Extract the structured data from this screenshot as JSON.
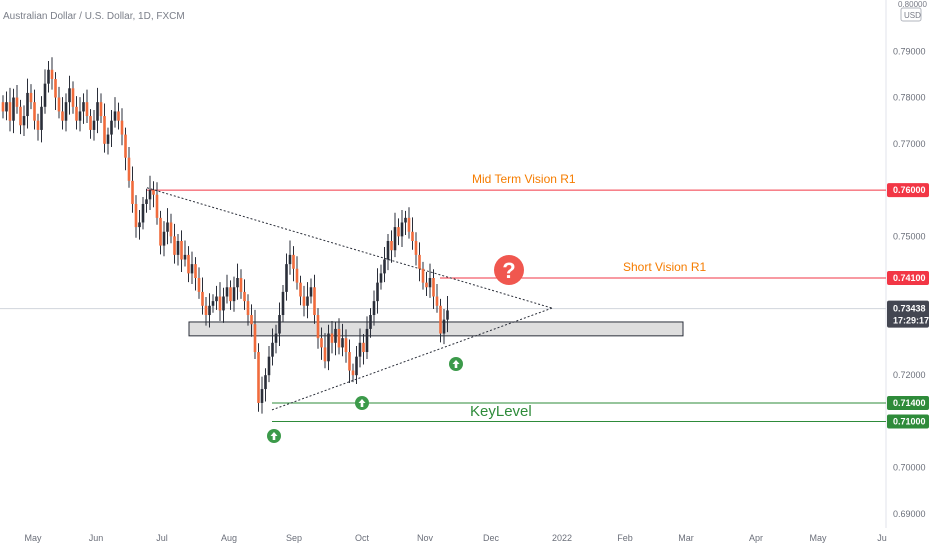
{
  "header": {
    "title": "Australian Dollar / U.S. Dollar, 1D, FXCM",
    "currency": "USD",
    "top_price": "0.80000"
  },
  "chart_data": {
    "type": "candlestick",
    "title": "Australian Dollar / U.S. Dollar, 1D, FXCM",
    "ylim": [
      0.685,
      0.803
    ],
    "y_ticks": [
      {
        "value": 0.79,
        "label": "0.79000"
      },
      {
        "value": 0.78,
        "label": "0.78000"
      },
      {
        "value": 0.77,
        "label": "0.77000"
      },
      {
        "value": 0.75,
        "label": "0.75000"
      },
      {
        "value": 0.72,
        "label": "0.72000"
      },
      {
        "value": 0.7,
        "label": "0.70000"
      },
      {
        "value": 0.69,
        "label": "0.69000"
      }
    ],
    "x_ticks": [
      "May",
      "Jun",
      "Jul",
      "Aug",
      "Sep",
      "Oct",
      "Nov",
      "Dec",
      "2022",
      "Feb",
      "Mar",
      "Apr",
      "May",
      "Ju"
    ],
    "bull_color": "#26a69a",
    "bear_color": "#ef5350",
    "candle_color": "#2a2e39",
    "closes": [
      0.777,
      0.779,
      0.775,
      0.78,
      0.778,
      0.774,
      0.776,
      0.781,
      0.779,
      0.775,
      0.773,
      0.778,
      0.783,
      0.786,
      0.784,
      0.78,
      0.777,
      0.775,
      0.779,
      0.782,
      0.778,
      0.775,
      0.777,
      0.779,
      0.776,
      0.773,
      0.775,
      0.779,
      0.776,
      0.77,
      0.772,
      0.775,
      0.777,
      0.775,
      0.772,
      0.767,
      0.762,
      0.757,
      0.752,
      0.753,
      0.757,
      0.758,
      0.76,
      0.759,
      0.754,
      0.748,
      0.751,
      0.753,
      0.75,
      0.746,
      0.749,
      0.745,
      0.746,
      0.742,
      0.744,
      0.741,
      0.738,
      0.735,
      0.733,
      0.735,
      0.736,
      0.737,
      0.734,
      0.737,
      0.739,
      0.736,
      0.739,
      0.741,
      0.738,
      0.736,
      0.733,
      0.731,
      0.725,
      0.714,
      0.717,
      0.72,
      0.724,
      0.727,
      0.729,
      0.733,
      0.738,
      0.744,
      0.746,
      0.743,
      0.74,
      0.737,
      0.735,
      0.737,
      0.739,
      0.733,
      0.728,
      0.726,
      0.723,
      0.729,
      0.727,
      0.73,
      0.726,
      0.728,
      0.725,
      0.721,
      0.72,
      0.724,
      0.727,
      0.725,
      0.73,
      0.733,
      0.736,
      0.74,
      0.742,
      0.745,
      0.749,
      0.747,
      0.752,
      0.75,
      0.753,
      0.754,
      0.751,
      0.749,
      0.746,
      0.743,
      0.74,
      0.739,
      0.741,
      0.737,
      0.735,
      0.729,
      0.732,
      0.734
    ],
    "annotations": {
      "mid_term_label": "Mid Term Vision R1",
      "short_label": "Short Vision R1",
      "key_label": "KeyLevel",
      "question_mark": "?"
    },
    "levels": [
      {
        "value": 0.76,
        "label": "0.76000",
        "color": "#f23645"
      },
      {
        "value": 0.741,
        "label": "0.74100",
        "color": "#f23645"
      },
      {
        "value": 0.714,
        "label": "0.71400",
        "color": "#2e8b3a"
      },
      {
        "value": 0.71,
        "label": "0.71000",
        "color": "#2e8b3a"
      }
    ],
    "current_price": {
      "value": 0.73438,
      "label": "0.73438",
      "countdown": "17:29:17"
    },
    "support_zone": [
      0.7285,
      0.7315
    ]
  }
}
